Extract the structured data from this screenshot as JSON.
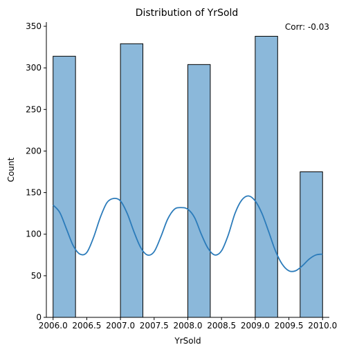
{
  "chart_data": {
    "type": "bar",
    "title": "Distribution of YrSold",
    "xlabel": "YrSold",
    "ylabel": "Count",
    "annotation": "Corr: -0.03",
    "xlim": [
      2005.9,
      2010.1
    ],
    "ylim": [
      0,
      355
    ],
    "x_ticks": [
      2006.0,
      2006.5,
      2007.0,
      2007.5,
      2008.0,
      2008.5,
      2009.0,
      2009.5,
      2010.0
    ],
    "x_tick_labels": [
      "2006.0",
      "2006.5",
      "2007.0",
      "2007.5",
      "2008.0",
      "2008.5",
      "2009.0",
      "2009.5",
      "2010.0"
    ],
    "y_ticks": [
      0,
      50,
      100,
      150,
      200,
      250,
      300,
      350
    ],
    "y_tick_labels": [
      "0",
      "50",
      "100",
      "150",
      "200",
      "250",
      "300",
      "350"
    ],
    "bins": [
      {
        "x0": 2006.0,
        "x1": 2006.333,
        "count": 314
      },
      {
        "x0": 2007.0,
        "x1": 2007.333,
        "count": 329
      },
      {
        "x0": 2008.0,
        "x1": 2008.333,
        "count": 304
      },
      {
        "x0": 2009.0,
        "x1": 2009.333,
        "count": 338
      },
      {
        "x0": 2009.667,
        "x1": 2010.0,
        "count": 175
      }
    ],
    "kde": {
      "x": [
        2006.0,
        2006.1,
        2006.2,
        2006.3,
        2006.4,
        2006.5,
        2006.6,
        2006.7,
        2006.8,
        2006.9,
        2007.0,
        2007.1,
        2007.2,
        2007.3,
        2007.4,
        2007.5,
        2007.6,
        2007.7,
        2007.8,
        2007.9,
        2008.0,
        2008.1,
        2008.2,
        2008.3,
        2008.4,
        2008.5,
        2008.6,
        2008.7,
        2008.8,
        2008.9,
        2009.0,
        2009.1,
        2009.2,
        2009.3,
        2009.4,
        2009.5,
        2009.6,
        2009.7,
        2009.8,
        2009.9,
        2010.0
      ],
      "y": [
        135,
        126,
        106,
        86,
        76,
        78,
        96,
        120,
        138,
        143,
        140,
        125,
        103,
        84,
        75,
        79,
        97,
        118,
        130,
        132,
        130,
        120,
        100,
        83,
        75,
        80,
        99,
        125,
        141,
        146,
        140,
        125,
        103,
        80,
        64,
        56,
        56,
        62,
        70,
        75,
        76
      ]
    },
    "bar_color": "#8bb8da",
    "bar_edge_color": "#000000",
    "kde_color": "#2b7bba",
    "grid": false,
    "spines": [
      "left",
      "bottom"
    ]
  }
}
